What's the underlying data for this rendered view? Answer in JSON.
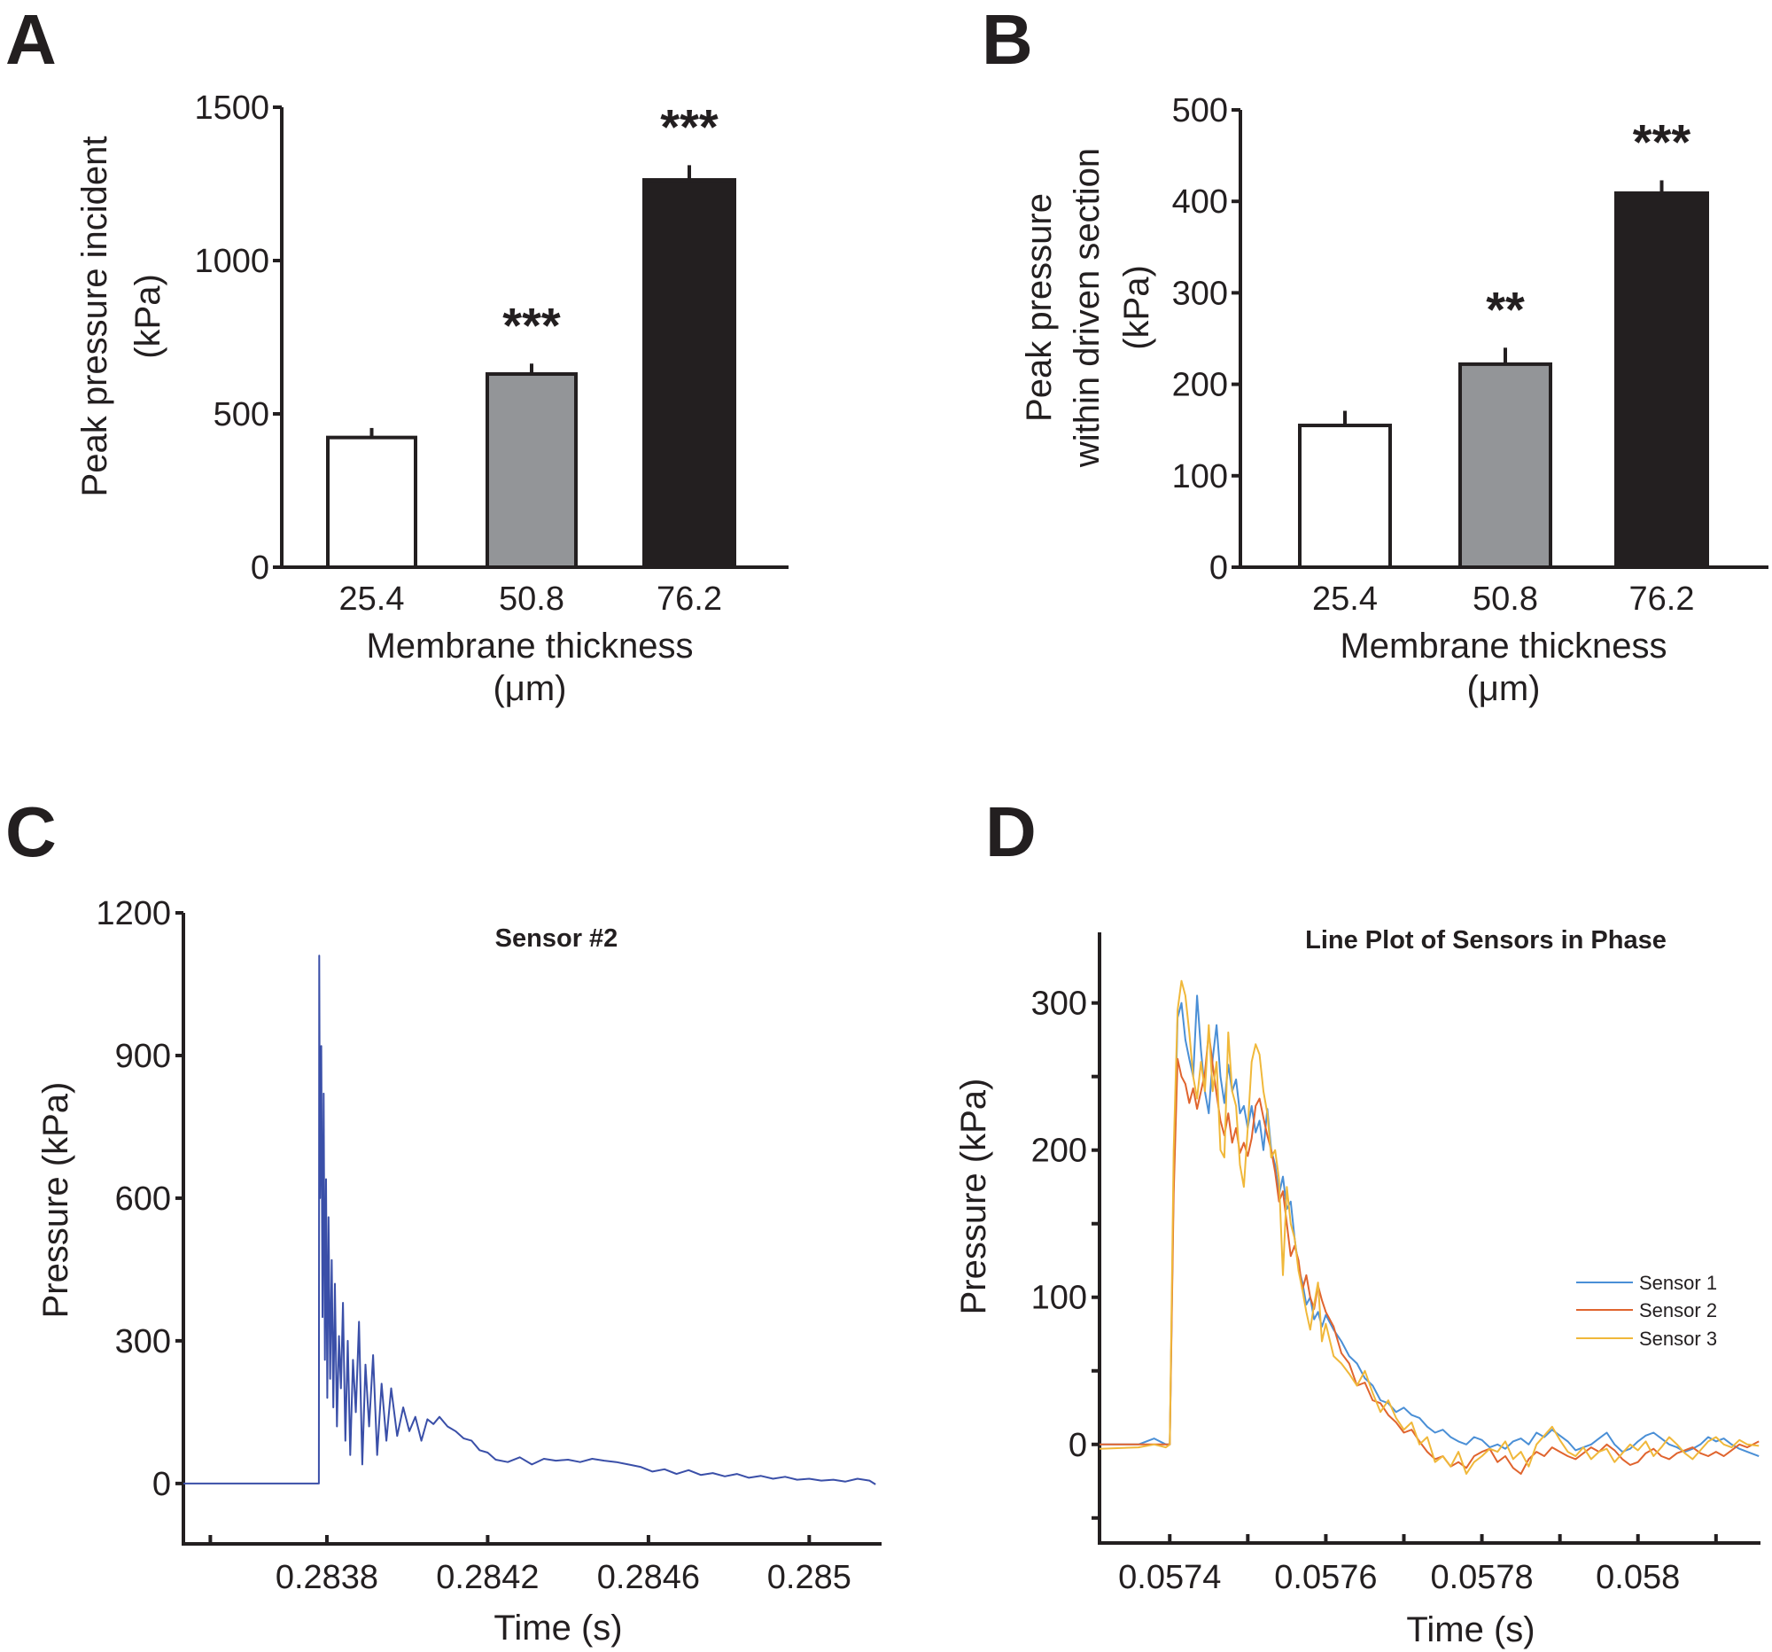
{
  "panels": {
    "A": {
      "letter": "A"
    },
    "B": {
      "letter": "B"
    },
    "C": {
      "letter": "C"
    },
    "D": {
      "letter": "D"
    }
  },
  "chart_data": [
    {
      "id": "A",
      "type": "bar",
      "title": "",
      "categories": [
        "25.4",
        "50.8",
        "76.2"
      ],
      "values": [
        423,
        630,
        1263
      ],
      "error_upper": [
        454,
        664,
        1311
      ],
      "bar_colors": [
        "#ffffff",
        "#939598",
        "#231f20"
      ],
      "significance": [
        "",
        "***",
        "***"
      ],
      "xlabel": "Membrane thickness",
      "xlabel_unit": "(μm)",
      "ylabel": "Peak pressure incident",
      "ylabel_unit": "(kPa)",
      "ylim": [
        0,
        1500
      ],
      "yticks": [
        0,
        500,
        1000,
        1500
      ],
      "grid": false
    },
    {
      "id": "B",
      "type": "bar",
      "title": "",
      "categories": [
        "25.4",
        "50.8",
        "76.2"
      ],
      "values": [
        155,
        222,
        409
      ],
      "error_upper": [
        171,
        240,
        423
      ],
      "bar_colors": [
        "#ffffff",
        "#939598",
        "#231f20"
      ],
      "significance": [
        "",
        "**",
        "***"
      ],
      "xlabel": "Membrane thickness",
      "xlabel_unit": "(μm)",
      "ylabel": "Peak pressure",
      "ylabel_line2": "within driven section",
      "ylabel_unit": "(kPa)",
      "ylim": [
        0,
        500
      ],
      "yticks": [
        0,
        100,
        200,
        300,
        400,
        500
      ],
      "grid": false
    },
    {
      "id": "C",
      "type": "line",
      "title": "Sensor #2",
      "xlabel": "Time (s)",
      "ylabel": "Pressure (kPa)",
      "xlim": [
        0.283443,
        0.28518
      ],
      "ylim": [
        -127,
        1200
      ],
      "xticks": [
        0.28351,
        0.2838,
        0.2842,
        0.2846,
        0.285
      ],
      "xtick_labels": [
        "",
        "0.2838",
        "0.2842",
        "0.2846",
        "0.285"
      ],
      "yticks": [
        0,
        300,
        600,
        900,
        1200
      ],
      "grid": false,
      "series": [
        {
          "name": "Sensor #2",
          "color": "#3a4fa8",
          "x": [
            0.283443,
            0.28378,
            0.283781,
            0.283783,
            0.283786,
            0.283789,
            0.283792,
            0.283795,
            0.283798,
            0.283801,
            0.283804,
            0.283808,
            0.283812,
            0.283816,
            0.28382,
            0.283825,
            0.28383,
            0.283835,
            0.28384,
            0.283846,
            0.283852,
            0.283858,
            0.283865,
            0.283872,
            0.28388,
            0.283888,
            0.283896,
            0.283905,
            0.283915,
            0.283925,
            0.283936,
            0.283948,
            0.28396,
            0.283975,
            0.28399,
            0.284005,
            0.28402,
            0.284035,
            0.28405,
            0.284065,
            0.28408,
            0.2841,
            0.28412,
            0.28414,
            0.28416,
            0.28418,
            0.2842,
            0.28422,
            0.28425,
            0.28428,
            0.28431,
            0.28434,
            0.28437,
            0.2844,
            0.28443,
            0.28446,
            0.28449,
            0.28452,
            0.28455,
            0.28458,
            0.28461,
            0.28464,
            0.28467,
            0.2847,
            0.28473,
            0.28476,
            0.28479,
            0.28482,
            0.28485,
            0.28488,
            0.28491,
            0.28494,
            0.28497,
            0.285,
            0.28503,
            0.28506,
            0.28509,
            0.28512,
            0.28515,
            0.285165
          ],
          "y": [
            0,
            0,
            1110,
            600,
            920,
            350,
            820,
            260,
            640,
            180,
            560,
            220,
            470,
            160,
            420,
            120,
            310,
            200,
            380,
            90,
            300,
            60,
            260,
            150,
            340,
            40,
            250,
            120,
            270,
            60,
            210,
            90,
            200,
            100,
            160,
            110,
            140,
            90,
            135,
            125,
            140,
            120,
            110,
            95,
            90,
            70,
            65,
            50,
            45,
            55,
            40,
            52,
            48,
            50,
            45,
            52,
            48,
            45,
            40,
            35,
            25,
            30,
            20,
            28,
            18,
            22,
            15,
            20,
            12,
            16,
            10,
            14,
            8,
            10,
            6,
            8,
            4,
            10,
            6,
            -2
          ]
        }
      ]
    },
    {
      "id": "D",
      "type": "line",
      "title": "Line Plot of Sensors in Phase",
      "xlabel": "Time (s)",
      "ylabel": "Pressure (kPa)",
      "xlim": [
        0.05731,
        0.058157
      ],
      "ylim": [
        -67,
        348
      ],
      "xticks": [
        0.0574,
        0.0575,
        0.0576,
        0.0577,
        0.0578,
        0.0579,
        0.058,
        0.0581
      ],
      "xtick_labels": [
        "0.0574",
        "",
        "0.0576",
        "",
        "0.0578",
        "",
        "0.058",
        ""
      ],
      "yticks": [
        -50,
        0,
        50,
        100,
        150,
        200,
        250,
        300
      ],
      "ytick_labels": [
        "",
        "0",
        "",
        "100",
        "",
        "200",
        "",
        "300"
      ],
      "legend_position": "right",
      "grid": false,
      "series": [
        {
          "name": "Sensor 1",
          "color": "#4a8fd6",
          "x": [
            0.05731,
            0.05736,
            0.05738,
            0.057395,
            0.0574,
            0.057405,
            0.05741,
            0.057415,
            0.05742,
            0.057425,
            0.05743,
            0.057435,
            0.05744,
            0.057445,
            0.05745,
            0.057455,
            0.05746,
            0.057465,
            0.05747,
            0.057475,
            0.05748,
            0.057485,
            0.05749,
            0.057495,
            0.0575,
            0.057505,
            0.05751,
            0.057515,
            0.05752,
            0.057525,
            0.05753,
            0.057535,
            0.05754,
            0.057545,
            0.05755,
            0.057555,
            0.05756,
            0.057565,
            0.05757,
            0.057575,
            0.05758,
            0.057585,
            0.05759,
            0.057595,
            0.0576,
            0.05761,
            0.05762,
            0.05763,
            0.05764,
            0.05765,
            0.05766,
            0.05767,
            0.05768,
            0.05769,
            0.0577,
            0.05771,
            0.05772,
            0.05773,
            0.05774,
            0.05775,
            0.05776,
            0.05777,
            0.05778,
            0.05779,
            0.0578,
            0.05781,
            0.05782,
            0.05783,
            0.05784,
            0.05785,
            0.05786,
            0.05787,
            0.05788,
            0.05789,
            0.0579,
            0.05791,
            0.05792,
            0.05793,
            0.05794,
            0.05795,
            0.05796,
            0.05797,
            0.05798,
            0.05799,
            0.058,
            0.05801,
            0.05802,
            0.05803,
            0.05804,
            0.05805,
            0.05806,
            0.05807,
            0.05808,
            0.05809,
            0.0581,
            0.05811,
            0.05812,
            0.05813,
            0.05814,
            0.058155
          ],
          "y": [
            0,
            0,
            4,
            0,
            0,
            180,
            290,
            300,
            275,
            262,
            250,
            305,
            268,
            240,
            225,
            262,
            285,
            250,
            232,
            258,
            240,
            248,
            225,
            230,
            215,
            230,
            212,
            220,
            200,
            228,
            200,
            190,
            170,
            182,
            160,
            165,
            140,
            120,
            110,
            95,
            100,
            85,
            90,
            80,
            88,
            78,
            70,
            60,
            55,
            45,
            40,
            30,
            28,
            22,
            25,
            20,
            18,
            12,
            8,
            10,
            5,
            2,
            0,
            5,
            3,
            -2,
            0,
            -3,
            2,
            4,
            0,
            8,
            5,
            10,
            6,
            2,
            -4,
            -2,
            0,
            4,
            8,
            0,
            -5,
            -3,
            2,
            6,
            8,
            4,
            0,
            -2,
            -5,
            -3,
            0,
            5,
            2,
            4,
            0,
            -3,
            -5,
            -8
          ]
        },
        {
          "name": "Sensor 2",
          "color": "#e0642e",
          "x": [
            0.05731,
            0.05736,
            0.05738,
            0.057395,
            0.0574,
            0.057405,
            0.05741,
            0.057415,
            0.05742,
            0.057425,
            0.05743,
            0.057435,
            0.05744,
            0.057445,
            0.05745,
            0.057455,
            0.05746,
            0.057465,
            0.05747,
            0.057475,
            0.05748,
            0.057485,
            0.05749,
            0.057495,
            0.0575,
            0.057505,
            0.05751,
            0.057515,
            0.05752,
            0.057525,
            0.05753,
            0.057535,
            0.05754,
            0.057545,
            0.05755,
            0.057555,
            0.05756,
            0.057565,
            0.05757,
            0.057575,
            0.05758,
            0.057585,
            0.05759,
            0.057595,
            0.0576,
            0.05761,
            0.05762,
            0.05763,
            0.05764,
            0.05765,
            0.05766,
            0.05767,
            0.05768,
            0.05769,
            0.0577,
            0.05771,
            0.05772,
            0.05773,
            0.05774,
            0.05775,
            0.05776,
            0.05777,
            0.05778,
            0.05779,
            0.0578,
            0.05781,
            0.05782,
            0.05783,
            0.05784,
            0.05785,
            0.05786,
            0.05787,
            0.05788,
            0.05789,
            0.0579,
            0.05791,
            0.05792,
            0.05793,
            0.05794,
            0.05795,
            0.05796,
            0.05797,
            0.05798,
            0.05799,
            0.058,
            0.05801,
            0.05802,
            0.05803,
            0.05804,
            0.05805,
            0.05806,
            0.05807,
            0.05808,
            0.05809,
            0.0581,
            0.05811,
            0.05812,
            0.05813,
            0.05814,
            0.058155
          ],
          "y": [
            0,
            0,
            0,
            0,
            0,
            170,
            262,
            250,
            245,
            232,
            242,
            228,
            240,
            252,
            280,
            258,
            238,
            220,
            210,
            225,
            205,
            215,
            198,
            205,
            196,
            208,
            230,
            235,
            222,
            210,
            200,
            185,
            165,
            172,
            150,
            128,
            135,
            125,
            105,
            115,
            100,
            92,
            108,
            98,
            90,
            80,
            62,
            55,
            40,
            42,
            30,
            28,
            20,
            15,
            8,
            10,
            2,
            -5,
            -10,
            -8,
            -15,
            -12,
            -16,
            -8,
            -5,
            -3,
            -12,
            -8,
            -16,
            -20,
            -10,
            -5,
            -8,
            -2,
            -5,
            -8,
            -10,
            -6,
            -2,
            -5,
            0,
            -4,
            -10,
            -14,
            -12,
            -6,
            -3,
            -8,
            -10,
            -6,
            -4,
            -2,
            -6,
            -8,
            -5,
            -8,
            -4,
            0,
            -2,
            2
          ]
        },
        {
          "name": "Sensor 3",
          "color": "#f0b83a",
          "x": [
            0.05731,
            0.05736,
            0.05738,
            0.057395,
            0.0574,
            0.057405,
            0.05741,
            0.057415,
            0.05742,
            0.057425,
            0.05743,
            0.057435,
            0.05744,
            0.057445,
            0.05745,
            0.057455,
            0.05746,
            0.057465,
            0.05747,
            0.057475,
            0.05748,
            0.057485,
            0.05749,
            0.057495,
            0.0575,
            0.057505,
            0.05751,
            0.057515,
            0.05752,
            0.057525,
            0.05753,
            0.057535,
            0.05754,
            0.057545,
            0.05755,
            0.057555,
            0.05756,
            0.057565,
            0.05757,
            0.057575,
            0.05758,
            0.057585,
            0.05759,
            0.057595,
            0.0576,
            0.05761,
            0.05762,
            0.05763,
            0.05764,
            0.05765,
            0.05766,
            0.05767,
            0.05768,
            0.05769,
            0.0577,
            0.05771,
            0.05772,
            0.05773,
            0.05774,
            0.05775,
            0.05776,
            0.05777,
            0.05778,
            0.05779,
            0.0578,
            0.05781,
            0.05782,
            0.05783,
            0.05784,
            0.05785,
            0.05786,
            0.05787,
            0.05788,
            0.05789,
            0.0579,
            0.05791,
            0.05792,
            0.05793,
            0.05794,
            0.05795,
            0.05796,
            0.05797,
            0.05798,
            0.05799,
            0.058,
            0.05801,
            0.05802,
            0.05803,
            0.05804,
            0.05805,
            0.05806,
            0.05807,
            0.05808,
            0.05809,
            0.0581,
            0.05811,
            0.05812,
            0.05813,
            0.05814,
            0.058155
          ],
          "y": [
            -3,
            -2,
            0,
            -2,
            0,
            200,
            295,
            315,
            305,
            280,
            250,
            235,
            260,
            240,
            285,
            240,
            260,
            200,
            195,
            280,
            240,
            230,
            190,
            175,
            215,
            260,
            272,
            265,
            240,
            225,
            195,
            200,
            180,
            115,
            175,
            150,
            140,
            118,
            105,
            90,
            78,
            95,
            110,
            70,
            82,
            60,
            55,
            48,
            40,
            50,
            35,
            22,
            30,
            18,
            10,
            15,
            0,
            5,
            -12,
            -8,
            -15,
            -5,
            -20,
            -12,
            -8,
            -3,
            -5,
            2,
            -10,
            -5,
            -15,
            0,
            6,
            12,
            3,
            -5,
            -8,
            -2,
            -10,
            -5,
            -3,
            -12,
            -6,
            0,
            -4,
            2,
            -8,
            -2,
            5,
            0,
            -6,
            -10,
            -4,
            2,
            5,
            0,
            -2,
            3,
            0,
            -1
          ]
        }
      ]
    }
  ]
}
